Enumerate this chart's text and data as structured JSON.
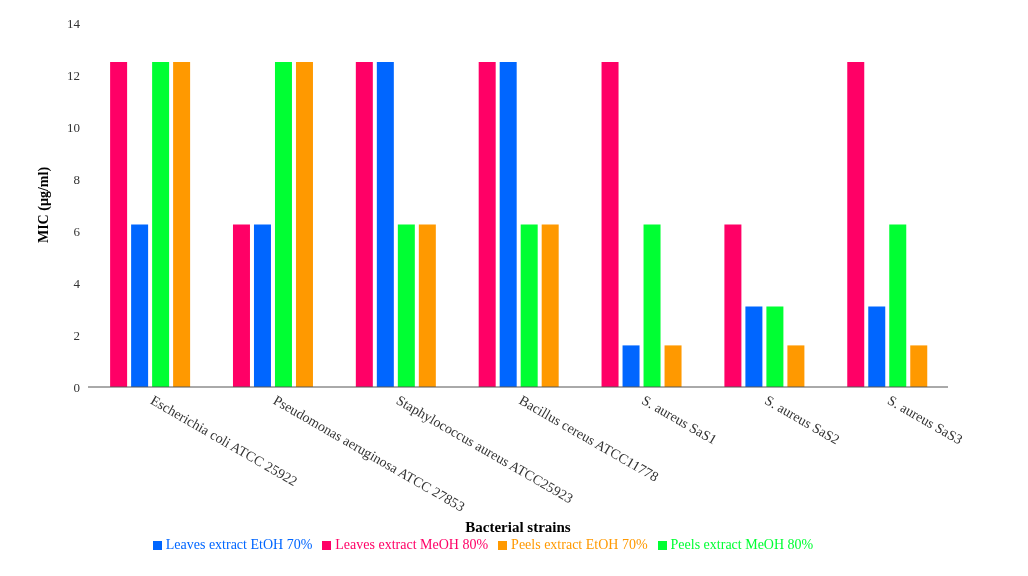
{
  "chart_data": {
    "type": "bar",
    "xlabel": "Bacterial strains",
    "ylabel": "MIC (µg/ml)",
    "categories": [
      "Escherichia coli ATCC 25922",
      "Pseudomonas aeruginosa ATCC 27853",
      "Staphylococcus aureus ATCC25923",
      "Bacillus cereus ATCC11778",
      "S. aureus SaS1",
      "S. aureus SaS2",
      "S. aureus SaS3"
    ],
    "series": [
      {
        "name": "Leaves extract MeOH 80%",
        "color": "#ff0066",
        "values": [
          12.5,
          6.25,
          12.5,
          12.5,
          12.5,
          6.25,
          12.5
        ]
      },
      {
        "name": "Leaves extract EtOH 70%",
        "color": "#0066ff",
        "values": [
          6.25,
          6.25,
          12.5,
          12.5,
          1.6,
          3.1,
          3.1
        ]
      },
      {
        "name": "Peels extract MeOH 80%",
        "color": "#00ff33",
        "values": [
          12.5,
          12.5,
          6.25,
          6.25,
          6.25,
          3.1,
          6.25
        ]
      },
      {
        "name": "Peels extract EtOH 70%",
        "color": "#ff9900",
        "values": [
          12.5,
          12.5,
          6.25,
          6.25,
          1.6,
          1.6,
          1.6
        ]
      }
    ],
    "ylim": [
      0,
      14
    ],
    "yticks": [
      0,
      2,
      4,
      6,
      8,
      10,
      12,
      14
    ],
    "grid": false,
    "legend": "bottom"
  }
}
